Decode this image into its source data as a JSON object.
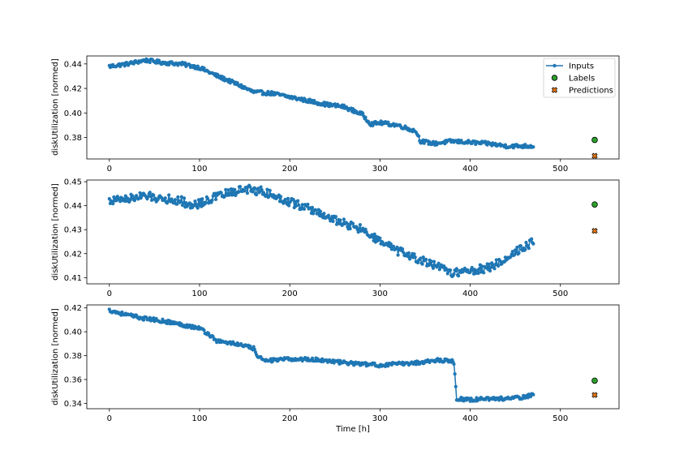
{
  "chart_data": [
    {
      "type": "line",
      "ylabel": "diskUtilization [normed]",
      "xlabel": "",
      "xlim": [
        -25,
        565
      ],
      "ylim": [
        0.3625,
        0.4465
      ],
      "xticks": [
        0,
        100,
        200,
        300,
        400,
        500
      ],
      "yticks": [
        0.38,
        0.4,
        0.42,
        0.44
      ],
      "legend": {
        "position": "top-right",
        "entries": [
          "Inputs",
          "Labels",
          "Predictions"
        ]
      },
      "inputs_n": 471,
      "inputs_keypoints": [
        [
          0,
          0.438
        ],
        [
          20,
          0.44
        ],
        [
          40,
          0.443
        ],
        [
          60,
          0.441
        ],
        [
          80,
          0.44
        ],
        [
          100,
          0.437
        ],
        [
          120,
          0.43
        ],
        [
          140,
          0.424
        ],
        [
          160,
          0.417
        ],
        [
          180,
          0.416
        ],
        [
          200,
          0.413
        ],
        [
          220,
          0.41
        ],
        [
          240,
          0.407
        ],
        [
          260,
          0.405
        ],
        [
          280,
          0.399
        ],
        [
          290,
          0.391
        ],
        [
          300,
          0.392
        ],
        [
          320,
          0.39
        ],
        [
          340,
          0.385
        ],
        [
          345,
          0.377
        ],
        [
          360,
          0.375
        ],
        [
          380,
          0.377
        ],
        [
          400,
          0.376
        ],
        [
          420,
          0.375
        ],
        [
          440,
          0.373
        ],
        [
          470,
          0.373
        ]
      ],
      "noise": 0.0015,
      "steps": [
        [
          290,
          -0.004
        ],
        [
          345,
          -0.005
        ]
      ],
      "labels": [
        {
          "x": 538,
          "y": 0.378
        }
      ],
      "predictions": [
        {
          "x": 538,
          "y": 0.365
        }
      ],
      "colors": {
        "inputs": "#1f77b4",
        "labels": "#2ca02c",
        "predictions": "#ff7f0e"
      }
    },
    {
      "type": "line",
      "ylabel": "diskUtilization [normed]",
      "xlabel": "",
      "xlim": [
        -25,
        565
      ],
      "ylim": [
        0.4074,
        0.4507
      ],
      "xticks": [
        0,
        100,
        200,
        300,
        400,
        500
      ],
      "yticks": [
        0.41,
        0.42,
        0.43,
        0.44,
        0.45
      ],
      "inputs_n": 471,
      "inputs_keypoints": [
        [
          0,
          0.442
        ],
        [
          20,
          0.443
        ],
        [
          40,
          0.444
        ],
        [
          60,
          0.443
        ],
        [
          80,
          0.442
        ],
        [
          90,
          0.44
        ],
        [
          100,
          0.441
        ],
        [
          120,
          0.444
        ],
        [
          140,
          0.446
        ],
        [
          150,
          0.447
        ],
        [
          170,
          0.446
        ],
        [
          190,
          0.443
        ],
        [
          220,
          0.439
        ],
        [
          250,
          0.434
        ],
        [
          280,
          0.43
        ],
        [
          300,
          0.425
        ],
        [
          320,
          0.421
        ],
        [
          340,
          0.418
        ],
        [
          360,
          0.415
        ],
        [
          380,
          0.412
        ],
        [
          400,
          0.413
        ],
        [
          420,
          0.414
        ],
        [
          430,
          0.416
        ],
        [
          440,
          0.418
        ],
        [
          455,
          0.422
        ],
        [
          470,
          0.425
        ]
      ],
      "noise": 0.0018,
      "steps": [],
      "labels": [
        {
          "x": 538,
          "y": 0.4405
        }
      ],
      "predictions": [
        {
          "x": 538,
          "y": 0.4295
        }
      ],
      "colors": {
        "inputs": "#1f77b4",
        "labels": "#2ca02c",
        "predictions": "#ff7f0e"
      }
    },
    {
      "type": "line",
      "ylabel": "diskUtilization [normed]",
      "xlabel": "Time [h]",
      "xlim": [
        -25,
        565
      ],
      "ylim": [
        0.3355,
        0.4225
      ],
      "xticks": [
        0,
        100,
        200,
        300,
        400,
        500
      ],
      "yticks": [
        0.34,
        0.36,
        0.38,
        0.4,
        0.42
      ],
      "inputs_n": 471,
      "inputs_keypoints": [
        [
          0,
          0.418
        ],
        [
          20,
          0.414
        ],
        [
          40,
          0.411
        ],
        [
          60,
          0.409
        ],
        [
          80,
          0.406
        ],
        [
          100,
          0.403
        ],
        [
          110,
          0.398
        ],
        [
          120,
          0.392
        ],
        [
          140,
          0.39
        ],
        [
          160,
          0.386
        ],
        [
          165,
          0.378
        ],
        [
          180,
          0.376
        ],
        [
          200,
          0.377
        ],
        [
          220,
          0.377
        ],
        [
          240,
          0.376
        ],
        [
          260,
          0.374
        ],
        [
          280,
          0.373
        ],
        [
          300,
          0.372
        ],
        [
          320,
          0.373
        ],
        [
          340,
          0.374
        ],
        [
          360,
          0.376
        ],
        [
          380,
          0.376
        ],
        [
          382,
          0.373
        ],
        [
          385,
          0.344
        ],
        [
          400,
          0.343
        ],
        [
          420,
          0.344
        ],
        [
          440,
          0.344
        ],
        [
          460,
          0.345
        ],
        [
          470,
          0.348
        ]
      ],
      "noise": 0.0015,
      "steps": [],
      "labels": [
        {
          "x": 538,
          "y": 0.359
        }
      ],
      "predictions": [
        {
          "x": 538,
          "y": 0.347
        }
      ],
      "colors": {
        "inputs": "#1f77b4",
        "labels": "#2ca02c",
        "predictions": "#ff7f0e"
      }
    }
  ]
}
